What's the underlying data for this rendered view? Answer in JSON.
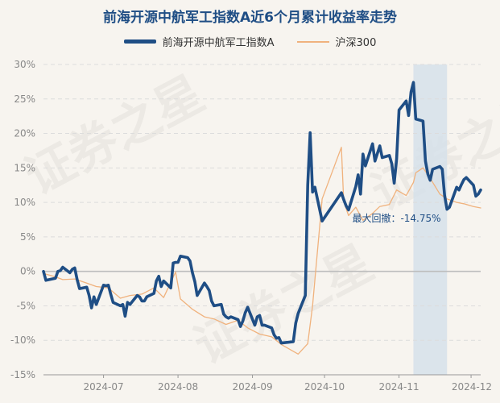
{
  "watermark_text": "证券之星",
  "chart_data": {
    "type": "line",
    "title": "前海开源中航军工指数A近6个月累计收益率走势",
    "xlabel": "",
    "ylabel": "",
    "ylim": [
      -15,
      30
    ],
    "yticks": [
      "30%",
      "25%",
      "20%",
      "15%",
      "10%",
      "5%",
      "0%",
      "-5%",
      "-10%",
      "-15%"
    ],
    "xticks": [
      "2024-07",
      "2024-08",
      "2024-09",
      "2024-10",
      "2024-11",
      "2024-12"
    ],
    "grid": true,
    "legend_position": "top-center",
    "max_drawdown_label": "最大回撤：-14.75%",
    "drawdown_shade_color": "#d6e0ea",
    "series": [
      {
        "name": "前海开源中航军工指数A",
        "color": "#1f4e85",
        "x": [
          "2024-06-06",
          "2024-06-07",
          "2024-06-11",
          "2024-06-12",
          "2024-06-13",
          "2024-06-14",
          "2024-06-17",
          "2024-06-18",
          "2024-06-19",
          "2024-06-20",
          "2024-06-21",
          "2024-06-24",
          "2024-06-25",
          "2024-06-26",
          "2024-06-27",
          "2024-06-28",
          "2024-07-01",
          "2024-07-02",
          "2024-07-03",
          "2024-07-04",
          "2024-07-05",
          "2024-07-08",
          "2024-07-09",
          "2024-07-10",
          "2024-07-11",
          "2024-07-12",
          "2024-07-15",
          "2024-07-16",
          "2024-07-17",
          "2024-07-18",
          "2024-07-19",
          "2024-07-22",
          "2024-07-23",
          "2024-07-24",
          "2024-07-25",
          "2024-07-26",
          "2024-07-29",
          "2024-07-30",
          "2024-07-31",
          "2024-08-01",
          "2024-08-02",
          "2024-08-05",
          "2024-08-06",
          "2024-08-07",
          "2024-08-08",
          "2024-08-09",
          "2024-08-12",
          "2024-08-13",
          "2024-08-14",
          "2024-08-15",
          "2024-08-16",
          "2024-08-19",
          "2024-08-20",
          "2024-08-21",
          "2024-08-22",
          "2024-08-23",
          "2024-08-26",
          "2024-08-27",
          "2024-08-28",
          "2024-08-29",
          "2024-08-30",
          "2024-09-02",
          "2024-09-03",
          "2024-09-04",
          "2024-09-05",
          "2024-09-06",
          "2024-09-09",
          "2024-09-10",
          "2024-09-11",
          "2024-09-12",
          "2024-09-13",
          "2024-09-18",
          "2024-09-19",
          "2024-09-20",
          "2024-09-23",
          "2024-09-24",
          "2024-09-25",
          "2024-09-26",
          "2024-09-27",
          "2024-09-30",
          "2024-10-08",
          "2024-10-09",
          "2024-10-10",
          "2024-10-11",
          "2024-10-14",
          "2024-10-15",
          "2024-10-16",
          "2024-10-17",
          "2024-10-18",
          "2024-10-21",
          "2024-10-22",
          "2024-10-23",
          "2024-10-24",
          "2024-10-25",
          "2024-10-28",
          "2024-10-29",
          "2024-10-30",
          "2024-10-31",
          "2024-11-01",
          "2024-11-04",
          "2024-11-05",
          "2024-11-06",
          "2024-11-07",
          "2024-11-08",
          "2024-11-11",
          "2024-11-12",
          "2024-11-13",
          "2024-11-14",
          "2024-11-15",
          "2024-11-18",
          "2024-11-19",
          "2024-11-20",
          "2024-11-21",
          "2024-11-22",
          "2024-11-25",
          "2024-11-26",
          "2024-11-27",
          "2024-11-28",
          "2024-11-29",
          "2024-12-02",
          "2024-12-03",
          "2024-12-04",
          "2024-12-05"
        ],
        "values": [
          0.0,
          -1.3,
          -1.0,
          0.0,
          0.1,
          0.6,
          -0.2,
          0.3,
          0.5,
          -1.2,
          -2.5,
          -2.3,
          -3.5,
          -5.3,
          -3.7,
          -4.8,
          -2.0,
          -2.1,
          -2.0,
          -3.3,
          -4.5,
          -5.0,
          -4.8,
          -6.5,
          -4.5,
          -4.8,
          -3.5,
          -3.7,
          -4.3,
          -4.3,
          -3.7,
          -3.2,
          -1.4,
          -0.7,
          -2.2,
          -1.4,
          -2.4,
          1.2,
          1.3,
          1.3,
          2.2,
          2.0,
          1.5,
          -0.2,
          -1.5,
          -3.5,
          -1.7,
          -2.2,
          -2.8,
          -4.3,
          -5.0,
          -4.8,
          -6.2,
          -6.6,
          -6.8,
          -6.6,
          -7.0,
          -8.0,
          -7.2,
          -6.0,
          -5.2,
          -7.8,
          -6.6,
          -6.4,
          -7.8,
          -7.8,
          -8.2,
          -9.2,
          -9.7,
          -9.6,
          -10.4,
          -10.2,
          -7.5,
          -6.1,
          -3.5,
          12.5,
          20.1,
          11.5,
          12.2,
          7.3,
          11.4,
          10.4,
          9.5,
          8.9,
          12.3,
          14.0,
          11.2,
          17.0,
          15.3,
          18.5,
          16.0,
          17.1,
          18.2,
          16.5,
          16.8,
          15.6,
          12.8,
          16.3,
          23.4,
          24.7,
          22.6,
          26.0,
          27.4,
          22.1,
          21.8,
          16.0,
          14.1,
          13.2,
          14.8,
          15.2,
          14.8,
          11.0,
          9.0,
          9.3,
          12.2,
          11.8,
          12.6,
          13.3,
          13.6,
          12.5,
          10.9,
          11.2,
          11.8
        ]
      },
      {
        "name": "沪深300",
        "color": "#f0b27d",
        "x": [
          "2024-06-06",
          "2024-06-11",
          "2024-06-14",
          "2024-06-19",
          "2024-06-24",
          "2024-06-28",
          "2024-07-03",
          "2024-07-08",
          "2024-07-12",
          "2024-07-17",
          "2024-07-22",
          "2024-07-26",
          "2024-07-31",
          "2024-08-02",
          "2024-08-07",
          "2024-08-12",
          "2024-08-16",
          "2024-08-21",
          "2024-08-26",
          "2024-08-30",
          "2024-09-04",
          "2024-09-09",
          "2024-09-13",
          "2024-09-20",
          "2024-09-24",
          "2024-09-26",
          "2024-09-30",
          "2024-10-08",
          "2024-10-09",
          "2024-10-11",
          "2024-10-14",
          "2024-10-17",
          "2024-10-21",
          "2024-10-24",
          "2024-10-28",
          "2024-10-31",
          "2024-11-04",
          "2024-11-07",
          "2024-11-08",
          "2024-11-11",
          "2024-11-14",
          "2024-11-18",
          "2024-11-21",
          "2024-11-25",
          "2024-11-28",
          "2024-12-02",
          "2024-12-05"
        ],
        "values": [
          -0.3,
          -0.8,
          -1.2,
          -1.1,
          -1.7,
          -2.2,
          -2.4,
          -3.9,
          -3.5,
          -3.3,
          -2.4,
          -3.8,
          -0.1,
          -4.0,
          -5.5,
          -6.6,
          -6.9,
          -7.7,
          -7.1,
          -8.2,
          -9.1,
          -9.5,
          -10.6,
          -12.0,
          -10.5,
          -5.0,
          10.5,
          18.0,
          10.1,
          8.1,
          9.3,
          7.4,
          8.4,
          9.4,
          9.7,
          11.8,
          11.0,
          12.9,
          14.3,
          15.0,
          13.5,
          11.2,
          10.5,
          10.0,
          9.8,
          9.4,
          9.2
        ]
      }
    ]
  }
}
